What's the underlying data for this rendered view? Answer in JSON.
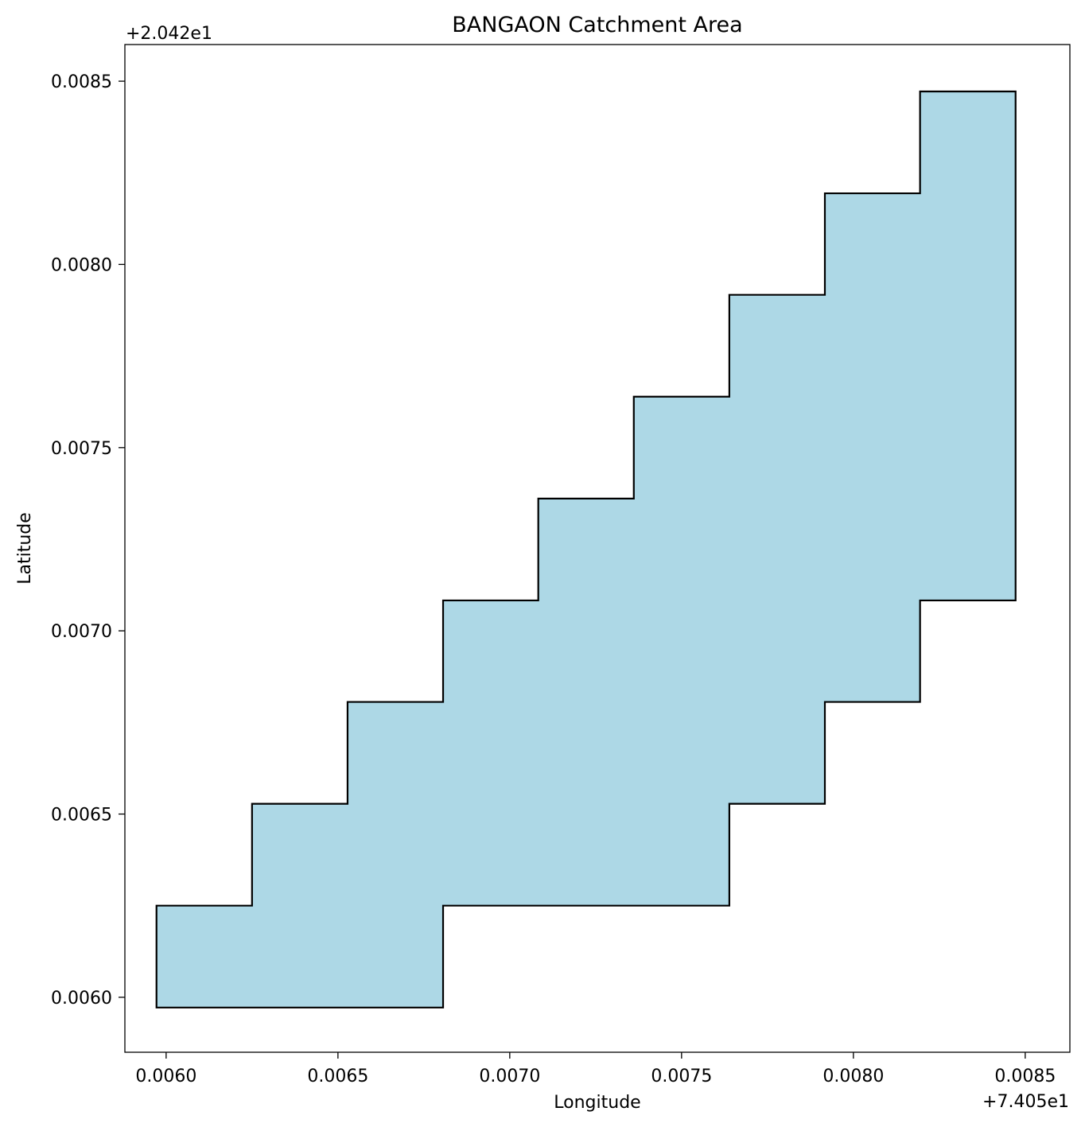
{
  "chart_data": {
    "type": "area",
    "title": "BANGAON Catchment Area",
    "xlabel": "Longitude",
    "ylabel": "Latitude",
    "x_offset_label": "+7.405e1",
    "y_offset_label": "+2.042e1",
    "xlim": [
      0.00588,
      0.00863
    ],
    "ylim": [
      0.00585,
      0.0086
    ],
    "x_ticks": [
      "0.0060",
      "0.0065",
      "0.0070",
      "0.0075",
      "0.0080",
      "0.0085"
    ],
    "y_ticks": [
      "0.0060",
      "0.0065",
      "0.0070",
      "0.0075",
      "0.0080",
      "0.0085"
    ],
    "grid": false,
    "fill_color": "#add8e6",
    "edge_color": "#000000",
    "polygon": [
      [
        0.005972,
        0.005972
      ],
      [
        0.005972,
        0.00625
      ],
      [
        0.00625,
        0.00625
      ],
      [
        0.00625,
        0.006528
      ],
      [
        0.006528,
        0.006528
      ],
      [
        0.006528,
        0.006806
      ],
      [
        0.006806,
        0.006806
      ],
      [
        0.006806,
        0.007083
      ],
      [
        0.007083,
        0.007083
      ],
      [
        0.007083,
        0.007361
      ],
      [
        0.007361,
        0.007361
      ],
      [
        0.007361,
        0.007639
      ],
      [
        0.007639,
        0.007639
      ],
      [
        0.007639,
        0.007917
      ],
      [
        0.007917,
        0.007917
      ],
      [
        0.007917,
        0.008194
      ],
      [
        0.008194,
        0.008194
      ],
      [
        0.008194,
        0.008472
      ],
      [
        0.008472,
        0.008472
      ],
      [
        0.008472,
        0.007083
      ],
      [
        0.008194,
        0.007083
      ],
      [
        0.008194,
        0.006806
      ],
      [
        0.007917,
        0.006806
      ],
      [
        0.007917,
        0.006528
      ],
      [
        0.007639,
        0.006528
      ],
      [
        0.007639,
        0.00625
      ],
      [
        0.006806,
        0.00625
      ],
      [
        0.006806,
        0.005972
      ]
    ]
  }
}
